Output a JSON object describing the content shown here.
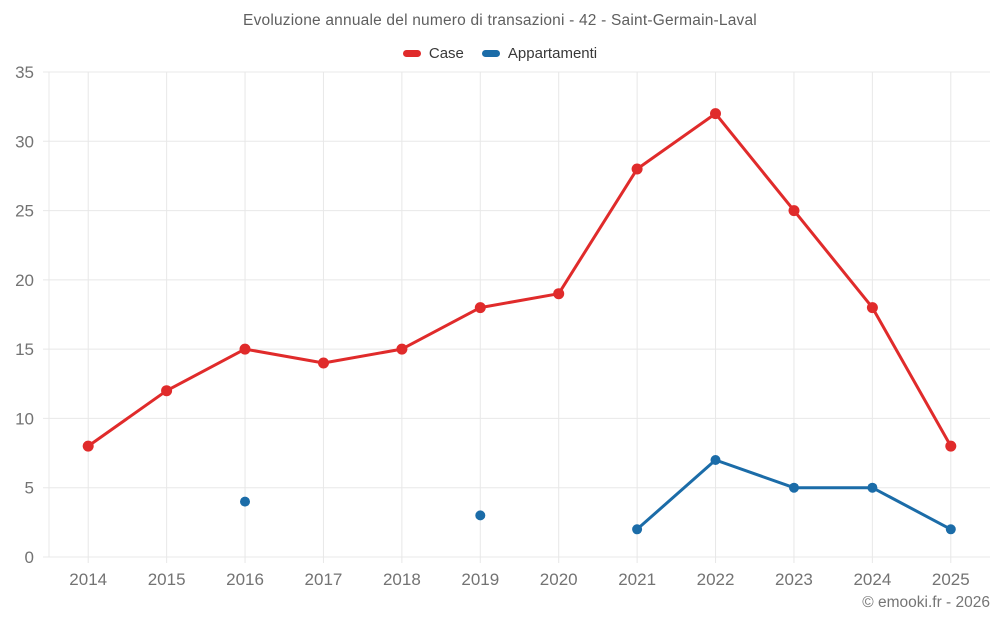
{
  "title": "Evoluzione annuale del numero di transazioni - 42 - Saint-Germain-Laval",
  "legend": {
    "items": [
      {
        "label": "Case",
        "color": "#e02b2b"
      },
      {
        "label": "Appartamenti",
        "color": "#1b6ca8"
      }
    ]
  },
  "footer": "© emooki.fr - 2026",
  "colors": {
    "background": "#ffffff",
    "grid": "#e8e8e8",
    "tick_label": "#737373",
    "title": "#5f5f5f",
    "legend_label": "#383838",
    "case": "#e02b2b",
    "appartamenti": "#1b6ca8"
  },
  "chart_data": {
    "type": "line",
    "title": "Evoluzione annuale del numero di transazioni - 42 - Saint-Germain-Laval",
    "categories": [
      "2014",
      "2015",
      "2016",
      "2017",
      "2018",
      "2019",
      "2020",
      "2021",
      "2022",
      "2023",
      "2024",
      "2025"
    ],
    "series": [
      {
        "name": "Case",
        "color": "#e02b2b",
        "marker_radius": 5.5,
        "line_width": 3,
        "values": [
          8,
          12,
          15,
          14,
          15,
          18,
          19,
          28,
          32,
          25,
          18,
          8
        ]
      },
      {
        "name": "Appartamenti",
        "color": "#1b6ca8",
        "marker_radius": 5,
        "line_width": 3,
        "values": [
          null,
          null,
          4,
          null,
          null,
          3,
          null,
          2,
          7,
          5,
          5,
          2
        ]
      }
    ],
    "xlabel": "",
    "ylabel": "",
    "ylim": [
      0,
      35
    ],
    "yticks": [
      0,
      5,
      10,
      15,
      20,
      25,
      30,
      35
    ],
    "grid": true,
    "legend_position": "top"
  }
}
